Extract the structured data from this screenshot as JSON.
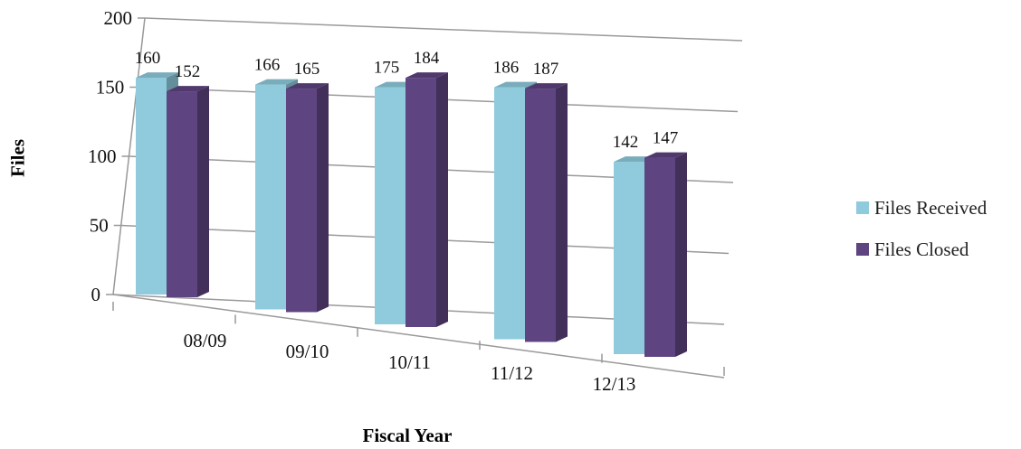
{
  "chart_data": {
    "type": "bar",
    "title": "",
    "xlabel": "Fiscal Year",
    "ylabel": "Files",
    "categories": [
      "08/09",
      "09/10",
      "10/11",
      "11/12",
      "12/13"
    ],
    "series": [
      {
        "name": "Files Received",
        "values": [
          160,
          166,
          175,
          186,
          142
        ],
        "color": "#8fcbdd"
      },
      {
        "name": "Files Closed",
        "values": [
          152,
          165,
          184,
          187,
          147
        ],
        "color": "#5e4480"
      }
    ],
    "ylim": [
      0,
      200
    ],
    "yticks": [
      "0",
      "50",
      "100",
      "150",
      "200"
    ],
    "grid": true,
    "legend_position": "right",
    "style": "3d-clustered-column"
  }
}
